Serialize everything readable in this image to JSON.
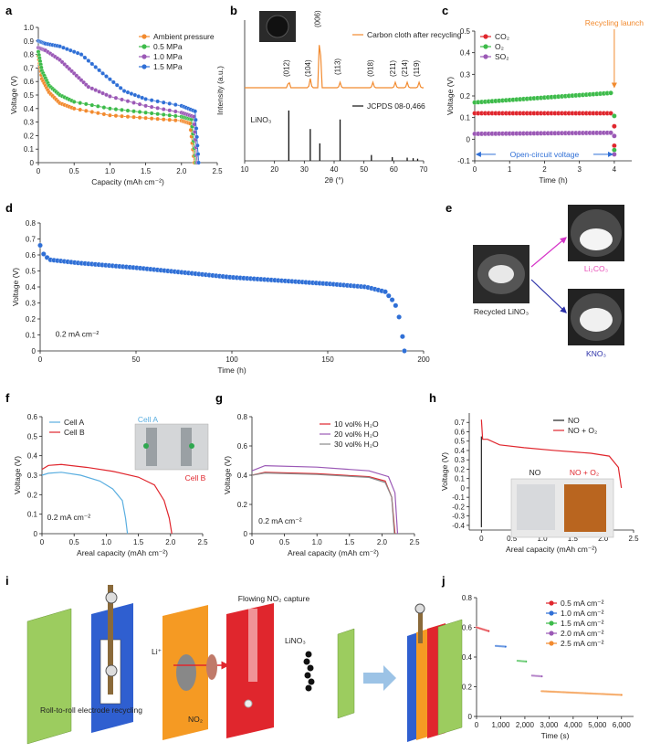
{
  "colors": {
    "orange": "#f28a2e",
    "green": "#3dbb4a",
    "purple": "#9b59b6",
    "blue": "#2f6fd6",
    "red": "#e0262d",
    "black": "#222222",
    "lightblue": "#5aaee0",
    "gray": "#8a8a8a",
    "pink": "#e84fb8",
    "magenta": "#d633c8"
  },
  "panel_labels": {
    "a": "a",
    "b": "b",
    "c": "c",
    "d": "d",
    "e": "e",
    "f": "f",
    "g": "g",
    "h": "h",
    "i": "i",
    "j": "j"
  },
  "chart_data": [
    {
      "id": "a",
      "type": "scatter",
      "xlabel": "Capacity (mAh cm⁻²)",
      "ylabel": "Voltage (V)",
      "xlim": [
        0,
        2.5
      ],
      "ylim": [
        0,
        1.0
      ],
      "xticks": [
        "0",
        "0.5",
        "1.0",
        "1.5",
        "2.0",
        "2.5"
      ],
      "yticks": [
        "0",
        "0.1",
        "0.2",
        "0.3",
        "0.4",
        "0.5",
        "0.6",
        "0.7",
        "0.8",
        "0.9",
        "1.0"
      ],
      "legend": [
        "Ambient pressure",
        "0.5 MPa",
        "1.0 MPa",
        "1.5 MPa"
      ],
      "series": [
        {
          "name": "Ambient pressure",
          "color": "orange",
          "end": 2.18,
          "pts": [
            [
              0,
              0.79
            ],
            [
              0.05,
              0.62
            ],
            [
              0.15,
              0.52
            ],
            [
              0.3,
              0.44
            ],
            [
              0.5,
              0.4
            ],
            [
              1.0,
              0.35
            ],
            [
              1.5,
              0.33
            ],
            [
              2.0,
              0.31
            ],
            [
              2.12,
              0.29
            ],
            [
              2.18,
              0.0
            ]
          ]
        },
        {
          "name": "0.5 MPa",
          "color": "green",
          "end": 2.2,
          "pts": [
            [
              0,
              0.82
            ],
            [
              0.05,
              0.68
            ],
            [
              0.15,
              0.57
            ],
            [
              0.3,
              0.5
            ],
            [
              0.5,
              0.45
            ],
            [
              1.0,
              0.4
            ],
            [
              1.5,
              0.37
            ],
            [
              2.0,
              0.34
            ],
            [
              2.14,
              0.32
            ],
            [
              2.2,
              0.0
            ]
          ]
        },
        {
          "name": "1.0 MPa",
          "color": "purple",
          "end": 2.22,
          "pts": [
            [
              0,
              0.85
            ],
            [
              0.1,
              0.83
            ],
            [
              0.3,
              0.76
            ],
            [
              0.5,
              0.66
            ],
            [
              0.7,
              0.56
            ],
            [
              1.0,
              0.49
            ],
            [
              1.5,
              0.42
            ],
            [
              2.0,
              0.37
            ],
            [
              2.17,
              0.34
            ],
            [
              2.22,
              0.0
            ]
          ]
        },
        {
          "name": "1.5 MPa",
          "color": "blue",
          "end": 2.24,
          "pts": [
            [
              0,
              0.9
            ],
            [
              0.1,
              0.88
            ],
            [
              0.3,
              0.86
            ],
            [
              0.6,
              0.8
            ],
            [
              0.9,
              0.66
            ],
            [
              1.2,
              0.53
            ],
            [
              1.5,
              0.47
            ],
            [
              2.0,
              0.42
            ],
            [
              2.19,
              0.38
            ],
            [
              2.24,
              0.0
            ]
          ]
        }
      ]
    },
    {
      "id": "b",
      "type": "line",
      "xlabel": "2θ (°)",
      "ylabel": "Intensity (a.u.)",
      "xlim": [
        10,
        70
      ],
      "xticks": [
        "10",
        "20",
        "30",
        "40",
        "50",
        "60",
        "70"
      ],
      "legend": [
        "Carbon cloth after recycling",
        "JCPDS 08-0,466"
      ],
      "peaks_top": [
        [
          24.8,
          "(012)"
        ],
        [
          32.0,
          "(104)"
        ],
        [
          35.2,
          "(006)"
        ],
        [
          42.0,
          "(113)"
        ],
        [
          53.0,
          "(018)"
        ],
        [
          60.5,
          "(211)"
        ],
        [
          64.5,
          "(214)"
        ],
        [
          68.5,
          "(119)"
        ]
      ],
      "sticks": [
        [
          24.8,
          0.95
        ],
        [
          32.0,
          0.6
        ],
        [
          35.2,
          0.33
        ],
        [
          42.0,
          0.78
        ],
        [
          52.5,
          0.11
        ],
        [
          59.5,
          0.07
        ],
        [
          64.5,
          0.06
        ],
        [
          66.5,
          0.05
        ],
        [
          68.0,
          0.04
        ]
      ],
      "stick_label": "LiNO₃"
    },
    {
      "id": "c",
      "type": "scatter",
      "xlabel": "Time (h)",
      "ylabel": "Voltage (V)",
      "xlim": [
        0,
        4.5
      ],
      "ylim": [
        -0.1,
        0.5
      ],
      "xticks": [
        "0",
        "1",
        "2",
        "3",
        "4"
      ],
      "yticks": [
        "-0.1",
        "0",
        "0.1",
        "0.2",
        "0.3",
        "0.4",
        "0.5"
      ],
      "legend": [
        "CO₂",
        "O₂",
        "SO₂"
      ],
      "series": [
        {
          "name": "CO₂",
          "color": "red",
          "start": 0.12,
          "end": 0.12,
          "drop": -0.03
        },
        {
          "name": "O₂",
          "color": "green",
          "start": 0.17,
          "end": 0.215,
          "drop": -0.05
        },
        {
          "name": "SO₂",
          "color": "purple",
          "start": 0.025,
          "end": 0.03,
          "drop": -0.07
        }
      ],
      "annotation_launch": "Recycling launch",
      "annotation_ocv": "Open-circuit voltage"
    },
    {
      "id": "d",
      "type": "scatter",
      "xlabel": "Time (h)",
      "ylabel": "Voltage (V)",
      "xlim": [
        0,
        200
      ],
      "ylim": [
        0,
        0.8
      ],
      "xticks": [
        "0",
        "50",
        "100",
        "150",
        "200"
      ],
      "yticks": [
        "0",
        "0.1",
        "0.2",
        "0.3",
        "0.4",
        "0.5",
        "0.6",
        "0.7",
        "0.8"
      ],
      "note": "0.2 mA cm⁻²",
      "color": "blue",
      "pts": [
        [
          0,
          0.66
        ],
        [
          2,
          0.6
        ],
        [
          5,
          0.57
        ],
        [
          20,
          0.55
        ],
        [
          50,
          0.52
        ],
        [
          100,
          0.46
        ],
        [
          150,
          0.42
        ],
        [
          170,
          0.4
        ],
        [
          180,
          0.37
        ],
        [
          185,
          0.3
        ],
        [
          188,
          0.18
        ],
        [
          190,
          0.0
        ]
      ]
    },
    {
      "id": "e",
      "type": "photo",
      "labels": [
        "Recycled LiNO₃",
        "Li₂CO₃",
        "KNO₃"
      ]
    },
    {
      "id": "f",
      "type": "line",
      "xlabel": "Areal capacity (mAh cm⁻²)",
      "ylabel": "Voltage (V)",
      "xlim": [
        0,
        2.5
      ],
      "ylim": [
        0,
        0.6
      ],
      "xticks": [
        "0",
        "0.5",
        "1.0",
        "1.5",
        "2.0",
        "2.5"
      ],
      "yticks": [
        "0",
        "0.1",
        "0.2",
        "0.3",
        "0.4",
        "0.5",
        "0.6"
      ],
      "legend": [
        "Cell A",
        "Cell B"
      ],
      "note": "0.2 mA cm⁻²",
      "inset_a": "Cell A",
      "inset_b": "Cell B",
      "series": [
        {
          "name": "Cell A",
          "color": "lightblue",
          "pts": [
            [
              0,
              0.3
            ],
            [
              0.1,
              0.31
            ],
            [
              0.3,
              0.315
            ],
            [
              0.6,
              0.3
            ],
            [
              0.9,
              0.27
            ],
            [
              1.1,
              0.23
            ],
            [
              1.25,
              0.17
            ],
            [
              1.3,
              0.08
            ],
            [
              1.33,
              0.0
            ]
          ]
        },
        {
          "name": "Cell B",
          "color": "red",
          "pts": [
            [
              0,
              0.33
            ],
            [
              0.1,
              0.35
            ],
            [
              0.3,
              0.355
            ],
            [
              0.7,
              0.34
            ],
            [
              1.1,
              0.32
            ],
            [
              1.5,
              0.29
            ],
            [
              1.75,
              0.25
            ],
            [
              1.9,
              0.17
            ],
            [
              1.98,
              0.08
            ],
            [
              2.02,
              0.0
            ]
          ]
        }
      ]
    },
    {
      "id": "g",
      "type": "line",
      "xlabel": "Areal capacity (mAh cm⁻²)",
      "ylabel": "Voltage (V)",
      "xlim": [
        0,
        2.5
      ],
      "ylim": [
        0,
        0.8
      ],
      "xticks": [
        "0",
        "0.5",
        "1.0",
        "1.5",
        "2.0",
        "2.5"
      ],
      "yticks": [
        "0",
        "0.2",
        "0.4",
        "0.6",
        "0.8"
      ],
      "legend": [
        "10 vol% H₂O",
        "20 vol% H₂O",
        "30 vol% H₂O"
      ],
      "note": "0.2 mA cm⁻²",
      "series": [
        {
          "name": "10 vol% H₂O",
          "color": "red",
          "pts": [
            [
              0,
              0.4
            ],
            [
              0.2,
              0.42
            ],
            [
              1.0,
              0.41
            ],
            [
              1.8,
              0.39
            ],
            [
              2.05,
              0.36
            ],
            [
              2.15,
              0.25
            ],
            [
              2.2,
              0.0
            ]
          ]
        },
        {
          "name": "20 vol% H₂O",
          "color": "purple",
          "pts": [
            [
              0,
              0.43
            ],
            [
              0.2,
              0.465
            ],
            [
              1.0,
              0.455
            ],
            [
              1.8,
              0.43
            ],
            [
              2.1,
              0.39
            ],
            [
              2.2,
              0.28
            ],
            [
              2.24,
              0.0
            ]
          ]
        },
        {
          "name": "30 vol% H₂O",
          "color": "gray",
          "pts": [
            [
              0,
              0.4
            ],
            [
              0.2,
              0.415
            ],
            [
              1.0,
              0.405
            ],
            [
              1.8,
              0.385
            ],
            [
              2.05,
              0.35
            ],
            [
              2.15,
              0.25
            ],
            [
              2.19,
              0.0
            ]
          ]
        }
      ]
    },
    {
      "id": "h",
      "type": "line",
      "xlabel": "Areal capacity (mAh cm⁻²)",
      "ylabel": "Voltage (V)",
      "xlim": [
        -0.2,
        2.5
      ],
      "ylim": [
        -0.45,
        0.8
      ],
      "xticks": [
        "0",
        "0.5",
        "1.0",
        "1.5",
        "2.0",
        "2.5"
      ],
      "yticks": [
        "-0.4",
        "-0.3",
        "-0.2",
        "-0.1",
        "0",
        "0.1",
        "0.2",
        "0.3",
        "0.4",
        "0.5",
        "0.6",
        "0.7"
      ],
      "legend": [
        "NO",
        "NO + O₂"
      ],
      "inset_no": "NO",
      "inset_noo": "NO + O₂",
      "series": [
        {
          "name": "NO",
          "color": "black",
          "pts": [
            [
              0,
              0.55
            ],
            [
              0,
              -0.42
            ]
          ]
        },
        {
          "name": "NO + O₂",
          "color": "red",
          "pts": [
            [
              0,
              0.73
            ],
            [
              0.02,
              0.52
            ],
            [
              0.1,
              0.52
            ],
            [
              0.3,
              0.46
            ],
            [
              0.7,
              0.43
            ],
            [
              1.2,
              0.4
            ],
            [
              1.8,
              0.37
            ],
            [
              2.1,
              0.34
            ],
            [
              2.25,
              0.22
            ],
            [
              2.3,
              0.0
            ]
          ]
        }
      ]
    },
    {
      "id": "i",
      "type": "schematic",
      "labels": [
        "Flowing NO₂ capture",
        "LiNO₃",
        "Li⁺",
        "NO₂",
        "Roll-to-roll electrode recycling"
      ]
    },
    {
      "id": "j",
      "type": "scatter",
      "xlabel": "Time (s)",
      "ylabel": "Voltage (V)",
      "xlim": [
        0,
        6500
      ],
      "ylim": [
        0,
        0.8
      ],
      "xticks": [
        "0",
        "1,000",
        "2,000",
        "3,000",
        "4,000",
        "5,000",
        "6,000"
      ],
      "yticks": [
        "0",
        "0.2",
        "0.4",
        "0.6",
        "0.8"
      ],
      "legend": [
        "0.5 mA cm⁻²",
        "1.0 mA cm⁻²",
        "1.5 mA cm⁻²",
        "2.0 mA cm⁻²",
        "2.5 mA cm⁻²"
      ],
      "series": [
        {
          "name": "0.5 mA cm⁻²",
          "color": "red",
          "t0": 0,
          "t1": 500,
          "v0": 0.6,
          "v1": 0.575
        },
        {
          "name": "1.0 mA cm⁻²",
          "color": "blue",
          "t0": 800,
          "t1": 1200,
          "v0": 0.475,
          "v1": 0.47
        },
        {
          "name": "1.5 mA cm⁻²",
          "color": "green",
          "t0": 1700,
          "t1": 2050,
          "v0": 0.375,
          "v1": 0.37
        },
        {
          "name": "2.0 mA cm⁻²",
          "color": "purple",
          "t0": 2300,
          "t1": 2700,
          "v0": 0.275,
          "v1": 0.27
        },
        {
          "name": "2.5 mA cm⁻²",
          "color": "orange",
          "t0": 2700,
          "t1": 6000,
          "v0": 0.17,
          "v1": 0.145
        }
      ]
    }
  ]
}
